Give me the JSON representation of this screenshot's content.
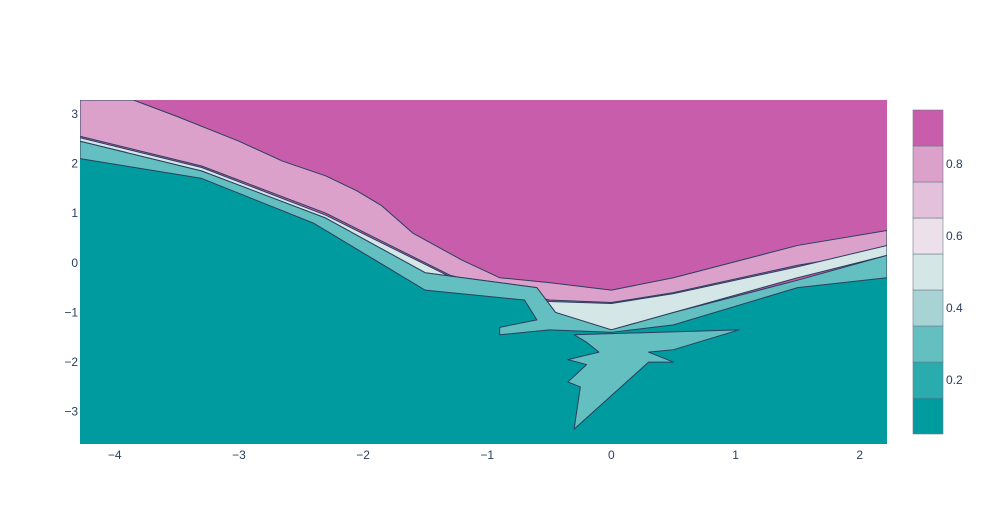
{
  "chart_data": {
    "type": "heatmap",
    "subtype": "contour",
    "title": "",
    "xlabel": "",
    "ylabel": "",
    "xlim": [
      -4.28,
      2.22
    ],
    "ylim": [
      -3.65,
      3.28
    ],
    "x_ticks": [
      {
        "value": -4,
        "label": "−4"
      },
      {
        "value": -3,
        "label": "−3"
      },
      {
        "value": -2,
        "label": "−2"
      },
      {
        "value": -1,
        "label": "−1"
      },
      {
        "value": 0,
        "label": "0"
      },
      {
        "value": 1,
        "label": "1"
      },
      {
        "value": 2,
        "label": "2"
      }
    ],
    "y_ticks": [
      {
        "value": 3,
        "label": "3"
      },
      {
        "value": 2,
        "label": "2"
      },
      {
        "value": 1,
        "label": "1"
      },
      {
        "value": 0,
        "label": "0"
      },
      {
        "value": -1,
        "label": "−1"
      },
      {
        "value": -2,
        "label": "−2"
      },
      {
        "value": -3,
        "label": "−3"
      }
    ],
    "grid": false,
    "line_color": "#2a3f5f",
    "colorscale_min": 0.05,
    "colorscale_max": 0.95,
    "colorscale_levels": [
      {
        "from": 0.05,
        "to": 0.15,
        "color": "#009b9e"
      },
      {
        "from": 0.15,
        "to": 0.25,
        "color": "#2aabad"
      },
      {
        "from": 0.25,
        "to": 0.35,
        "color": "#64bfc0"
      },
      {
        "from": 0.35,
        "to": 0.45,
        "color": "#a7d3d4"
      },
      {
        "from": 0.45,
        "to": 0.55,
        "color": "#d5e6e6"
      },
      {
        "from": 0.55,
        "to": 0.65,
        "color": "#ece0ea"
      },
      {
        "from": 0.65,
        "to": 0.75,
        "color": "#e4c1da"
      },
      {
        "from": 0.75,
        "to": 0.85,
        "color": "#dba1ca"
      },
      {
        "from": 0.85,
        "to": 0.95,
        "color": "#c75dab"
      }
    ],
    "colorbar_ticks": [
      {
        "value": 0.2,
        "label": "0.2"
      },
      {
        "value": 0.4,
        "label": "0.4"
      },
      {
        "value": 0.6,
        "label": "0.6"
      },
      {
        "value": 0.8,
        "label": "0.8"
      }
    ],
    "regions": [
      {
        "name": "band-0.8",
        "level": 0.8,
        "color": "#dba1ca",
        "points": [
          [
            -4.28,
            3.28
          ],
          [
            -3.85,
            3.28
          ],
          [
            -3.5,
            2.95
          ],
          [
            -3.0,
            2.45
          ],
          [
            -2.65,
            2.05
          ],
          [
            -2.3,
            1.75
          ],
          [
            -2.05,
            1.45
          ],
          [
            -1.85,
            1.15
          ],
          [
            -1.6,
            0.6
          ],
          [
            -1.2,
            0.05
          ],
          [
            -0.9,
            -0.3
          ],
          [
            -0.5,
            -0.4
          ],
          [
            0,
            -0.55
          ],
          [
            0.5,
            -0.3
          ],
          [
            1.5,
            0.35
          ],
          [
            2.22,
            0.65
          ],
          [
            2.22,
            0.25
          ],
          [
            1.5,
            -0.05
          ],
          [
            0.5,
            -0.6
          ],
          [
            0,
            -0.8
          ],
          [
            -0.5,
            -0.75
          ],
          [
            -1.3,
            -0.25
          ],
          [
            -2.3,
            1.0
          ],
          [
            -3.3,
            1.95
          ],
          [
            -4.28,
            2.55
          ]
        ]
      },
      {
        "name": "band-0.4",
        "level": 0.4,
        "color": "#d5e6e6",
        "points": [
          [
            -4.28,
            2.52
          ],
          [
            -3.3,
            1.92
          ],
          [
            -2.3,
            0.96
          ],
          [
            -1.3,
            -0.28
          ],
          [
            -0.5,
            -0.78
          ],
          [
            0,
            -0.82
          ],
          [
            0.5,
            -0.62
          ],
          [
            1.5,
            -0.08
          ],
          [
            2.22,
            0.35
          ],
          [
            2.22,
            0.15
          ],
          [
            1.5,
            -0.3
          ],
          [
            0.5,
            -1.0
          ],
          [
            0,
            -1.35
          ],
          [
            -0.45,
            -1.0
          ],
          [
            -0.6,
            -0.5
          ],
          [
            -1.5,
            -0.2
          ],
          [
            -2.3,
            0.9
          ],
          [
            -3.3,
            1.85
          ],
          [
            -4.28,
            2.45
          ]
        ]
      },
      {
        "name": "band-0.3",
        "level": 0.3,
        "color": "#64bfc0",
        "points": [
          [
            -4.28,
            2.45
          ],
          [
            -3.3,
            1.85
          ],
          [
            -2.3,
            0.9
          ],
          [
            -1.5,
            -0.2
          ],
          [
            -0.6,
            -0.5
          ],
          [
            -0.45,
            -1.0
          ],
          [
            0,
            -1.35
          ],
          [
            0.5,
            -1.0
          ],
          [
            1.5,
            -0.35
          ],
          [
            2.22,
            0.15
          ],
          [
            2.22,
            -0.3
          ],
          [
            1.5,
            -0.5
          ],
          [
            0.5,
            -1.25
          ],
          [
            0,
            -1.4
          ],
          [
            -0.5,
            -1.35
          ],
          [
            -0.9,
            -1.45
          ],
          [
            -0.9,
            -1.3
          ],
          [
            -0.6,
            -1.15
          ],
          [
            -0.7,
            -0.75
          ],
          [
            -1.5,
            -0.55
          ],
          [
            -2.4,
            0.8
          ],
          [
            -3.3,
            1.7
          ],
          [
            -4.28,
            2.1
          ]
        ]
      },
      {
        "name": "inner-patch",
        "level": 0.3,
        "color": "#64bfc0",
        "points": [
          [
            -0.3,
            -1.45
          ],
          [
            1.03,
            -1.35
          ],
          [
            0.5,
            -1.75
          ],
          [
            0.3,
            -1.8
          ],
          [
            0.5,
            -2.0
          ],
          [
            0.3,
            -2.0
          ],
          [
            -0.3,
            -3.35
          ],
          [
            -0.25,
            -2.5
          ],
          [
            -0.35,
            -2.4
          ],
          [
            -0.2,
            -2.05
          ],
          [
            -0.35,
            -1.95
          ],
          [
            -0.1,
            -1.8
          ],
          [
            -0.2,
            -1.6
          ]
        ]
      }
    ]
  }
}
